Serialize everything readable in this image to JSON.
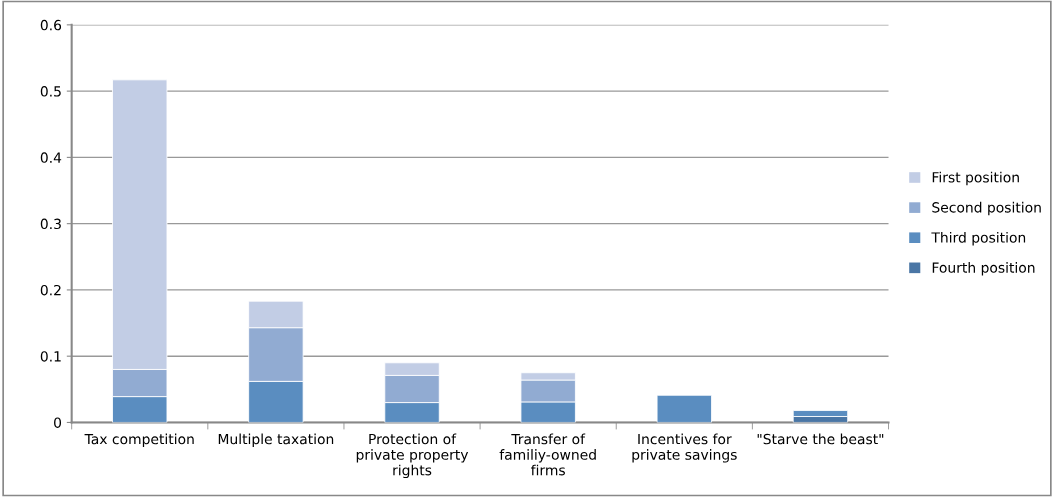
{
  "chart_data": {
    "type": "bar",
    "stacked": true,
    "categories": [
      "Tax competition",
      "Multiple taxation",
      "Protection of private property rights",
      "Transfer of familiy-owned firms",
      "Incentives for private savings",
      "\"Starve the beast\""
    ],
    "series": [
      {
        "name": "Fourth position",
        "color": "#4a76a5",
        "values": [
          0,
          0,
          0,
          0,
          0,
          0.009
        ]
      },
      {
        "name": "Third position",
        "color": "#5a8dc0",
        "values": [
          0.039,
          0.062,
          0.03,
          0.031,
          0.041,
          0.009
        ]
      },
      {
        "name": "Second position",
        "color": "#91abd2",
        "values": [
          0.041,
          0.081,
          0.041,
          0.033,
          0,
          0
        ]
      },
      {
        "name": "First position",
        "color": "#c2cde5",
        "values": [
          0.437,
          0.04,
          0.019,
          0.011,
          0,
          0
        ]
      }
    ],
    "ylim": [
      0,
      0.6
    ],
    "yticks": [
      0,
      0.1,
      0.2,
      0.3,
      0.4,
      0.5,
      0.6
    ],
    "grid": "y",
    "legend": "right"
  }
}
